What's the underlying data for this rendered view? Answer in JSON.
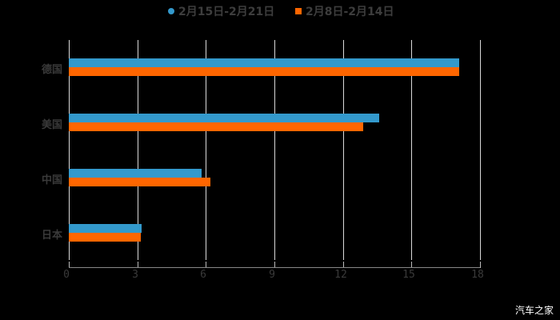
{
  "chart_data": {
    "type": "bar",
    "orientation": "horizontal",
    "title": "",
    "categories": [
      "德国",
      "美国",
      "中国",
      "日本"
    ],
    "series": [
      {
        "name": "2月15日-2月21日",
        "color": "#3399cc",
        "values": [
          17.1,
          13.6,
          5.8,
          3.2
        ]
      },
      {
        "name": "2月8日-2月14日",
        "color": "#ff6600",
        "values": [
          17.1,
          12.9,
          6.2,
          3.15
        ]
      }
    ],
    "xlabel": "",
    "ylabel": "",
    "xlim": [
      0,
      18
    ],
    "xticks": [
      "0",
      "3",
      "6",
      "9",
      "12",
      "15",
      "18"
    ],
    "grid": true,
    "legend_position": "top"
  },
  "legend": {
    "items": [
      {
        "label": "2月15日-2月21日",
        "color": "#3399cc",
        "marker": "circle"
      },
      {
        "label": "2月8日-2月14日",
        "color": "#ff6600",
        "marker": "square"
      }
    ]
  },
  "watermark": "汽车之家"
}
